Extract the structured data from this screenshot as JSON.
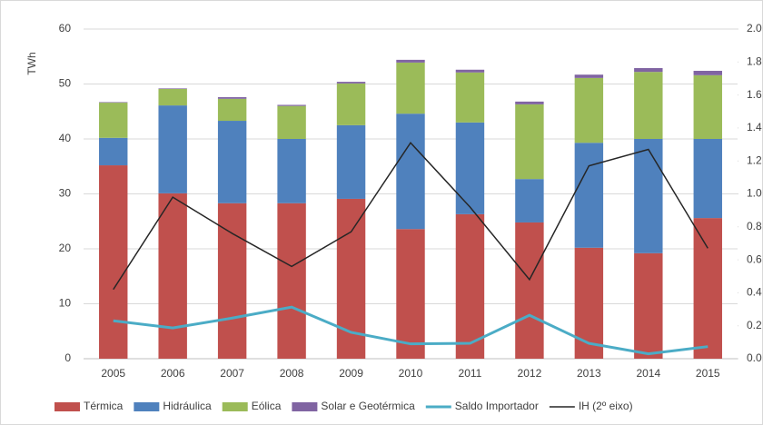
{
  "chart_data": {
    "type": "bar",
    "stacked": true,
    "y_label": "TWh",
    "categories": [
      "2005",
      "2006",
      "2007",
      "2008",
      "2009",
      "2010",
      "2011",
      "2012",
      "2013",
      "2014",
      "2015"
    ],
    "series": [
      {
        "name": "Térmica",
        "type": "bar",
        "color": "#c0504d",
        "values": [
          35.2,
          30.1,
          28.3,
          28.3,
          29.1,
          23.6,
          26.3,
          24.8,
          20.2,
          19.2,
          25.6
        ]
      },
      {
        "name": "Hidráulica",
        "type": "bar",
        "color": "#4f81bd",
        "values": [
          5.0,
          16.0,
          15.0,
          11.7,
          13.4,
          21.0,
          16.7,
          7.9,
          19.1,
          20.8,
          14.4
        ]
      },
      {
        "name": "Eólica",
        "type": "bar",
        "color": "#9bbb59",
        "values": [
          6.4,
          3.0,
          4.0,
          6.0,
          7.6,
          9.3,
          9.1,
          13.6,
          11.8,
          12.2,
          11.6
        ]
      },
      {
        "name": "Solar e Geotérmica",
        "type": "bar",
        "color": "#8064a2",
        "values": [
          0.1,
          0.1,
          0.3,
          0.2,
          0.3,
          0.5,
          0.5,
          0.5,
          0.6,
          0.7,
          0.8
        ]
      },
      {
        "name": "Saldo Importador",
        "type": "line",
        "color": "#4bacc6",
        "width": 3,
        "values": [
          6.9,
          5.6,
          7.4,
          9.4,
          4.8,
          2.7,
          2.8,
          7.9,
          2.8,
          0.9,
          2.2
        ]
      },
      {
        "name": "IH (2º eixo)",
        "type": "line",
        "axis": "y2",
        "color": "#262626",
        "width": 1.5,
        "values": [
          0.42,
          0.98,
          0.76,
          0.56,
          0.77,
          1.31,
          0.92,
          0.48,
          1.17,
          1.27,
          0.67
        ]
      }
    ],
    "ylim": [
      0,
      60
    ],
    "yticks": [
      0,
      10,
      20,
      30,
      40,
      50,
      60
    ],
    "y2lim": [
      0,
      2
    ],
    "y2ticks": [
      {
        "value": 0,
        "label": "0.0"
      },
      0.2,
      0.4,
      0.6,
      0.8,
      {
        "value": 1,
        "label": "1.0"
      },
      1.2,
      1.4,
      1.6,
      1.8,
      {
        "value": 2,
        "label": "2.0"
      }
    ],
    "grid": true,
    "legend": "bottom"
  }
}
